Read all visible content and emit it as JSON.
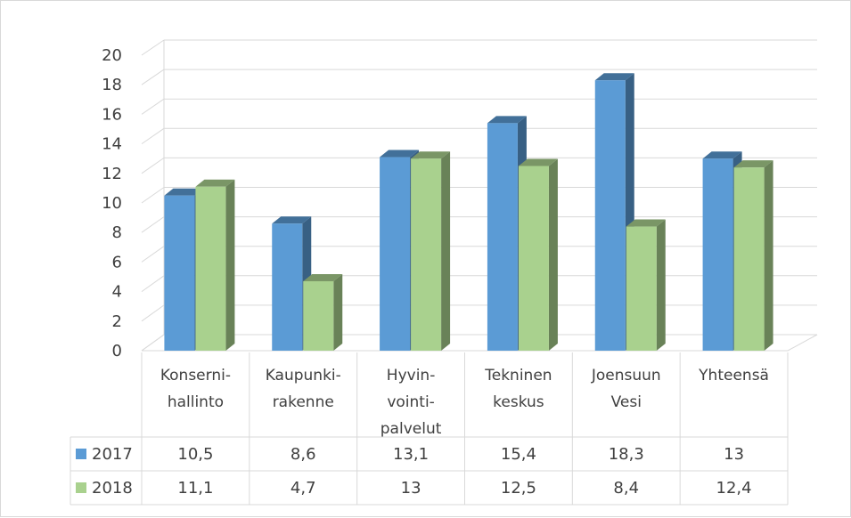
{
  "chart_data": {
    "type": "bar",
    "categories": [
      [
        "Konserni-",
        "hallinto"
      ],
      [
        "Kaupunki-",
        "rakenne"
      ],
      [
        "Hyvin-",
        "vointi-",
        "palvelut"
      ],
      [
        "Tekninen",
        "keskus"
      ],
      [
        "Joensuun",
        "Vesi"
      ],
      [
        "Yhteensä"
      ]
    ],
    "series": [
      {
        "name": "2017",
        "values": [
          10.5,
          8.6,
          13.1,
          15.4,
          18.3,
          13
        ],
        "labels": [
          "10,5",
          "8,6",
          "13,1",
          "15,4",
          "18,3",
          "13"
        ],
        "color": "#5b9bd5"
      },
      {
        "name": "2018",
        "values": [
          11.1,
          4.7,
          13,
          12.5,
          8.4,
          12.4
        ],
        "labels": [
          "11,1",
          "4,7",
          "13",
          "12,5",
          "8,4",
          "12,4"
        ],
        "color": "#a9d18e"
      }
    ],
    "yticks": [
      "0",
      "2",
      "4",
      "6",
      "8",
      "10",
      "12",
      "14",
      "16",
      "18",
      "20"
    ],
    "ylim": [
      0,
      20
    ],
    "grid": true,
    "data_table": true,
    "style": "3d-clustered-column"
  }
}
